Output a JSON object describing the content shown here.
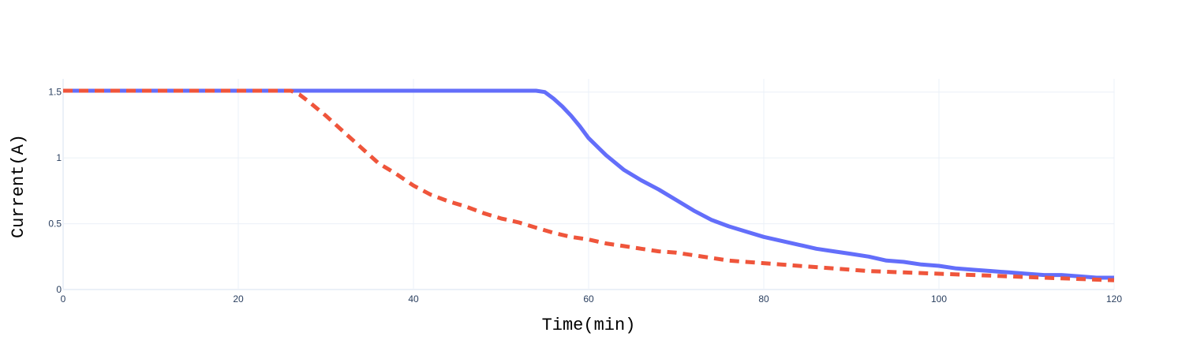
{
  "chart_data": {
    "type": "line",
    "title": "",
    "xlabel": "Time(min)",
    "ylabel": "Current(A)",
    "xlim": [
      0,
      120
    ],
    "ylim": [
      0,
      1.6
    ],
    "x_ticks": [
      0,
      20,
      40,
      60,
      80,
      100,
      120
    ],
    "y_ticks": [
      0,
      0.5,
      1,
      1.5
    ],
    "x_tick_labels": [
      "0",
      "20",
      "40",
      "60",
      "80",
      "100",
      "120"
    ],
    "y_tick_labels": [
      "0",
      "0.5",
      "1",
      "1.5"
    ],
    "grid": true,
    "legend": "none",
    "series": [
      {
        "color": "#636efa",
        "dash": "solid",
        "x": [
          0,
          5,
          10,
          20,
          30,
          40,
          50,
          54,
          55,
          56,
          57,
          58,
          59,
          60,
          62,
          64,
          66,
          68,
          70,
          72,
          74,
          76,
          78,
          80,
          82,
          84,
          86,
          88,
          90,
          92,
          94,
          96,
          98,
          100,
          102,
          104,
          106,
          108,
          110,
          112,
          114,
          116,
          118,
          120
        ],
        "y": [
          1.51,
          1.51,
          1.51,
          1.51,
          1.51,
          1.51,
          1.51,
          1.51,
          1.5,
          1.45,
          1.39,
          1.32,
          1.24,
          1.15,
          1.02,
          0.91,
          0.83,
          0.76,
          0.68,
          0.6,
          0.53,
          0.48,
          0.44,
          0.4,
          0.37,
          0.34,
          0.31,
          0.29,
          0.27,
          0.25,
          0.22,
          0.21,
          0.19,
          0.18,
          0.16,
          0.15,
          0.14,
          0.13,
          0.12,
          0.11,
          0.11,
          0.1,
          0.09,
          0.09
        ]
      },
      {
        "color": "#ef553b",
        "dash": "dash",
        "x": [
          0,
          10,
          20,
          26,
          27,
          28,
          30,
          32,
          34,
          36,
          38,
          40,
          42,
          44,
          46,
          48,
          50,
          52,
          54,
          56,
          58,
          60,
          62,
          64,
          66,
          68,
          70,
          72,
          74,
          76,
          78,
          80,
          84,
          88,
          92,
          96,
          100,
          104,
          108,
          112,
          116,
          120
        ],
        "y": [
          1.51,
          1.51,
          1.51,
          1.51,
          1.48,
          1.43,
          1.32,
          1.2,
          1.08,
          0.96,
          0.88,
          0.79,
          0.72,
          0.67,
          0.63,
          0.58,
          0.54,
          0.51,
          0.47,
          0.43,
          0.4,
          0.38,
          0.35,
          0.33,
          0.31,
          0.29,
          0.28,
          0.26,
          0.24,
          0.22,
          0.21,
          0.2,
          0.18,
          0.16,
          0.14,
          0.13,
          0.12,
          0.11,
          0.1,
          0.09,
          0.08,
          0.07
        ]
      }
    ]
  }
}
